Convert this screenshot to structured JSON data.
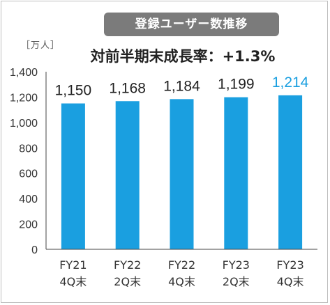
{
  "chart_data": {
    "type": "bar",
    "title": "登録ユーザー数推移",
    "unit": "［万人］",
    "annotation": "対前半期末成長率：+1.3%",
    "categories": [
      [
        "FY21",
        "4Q末"
      ],
      [
        "FY22",
        "2Q末"
      ],
      [
        "FY22",
        "4Q末"
      ],
      [
        "FY23",
        "2Q末"
      ],
      [
        "FY23",
        "4Q末"
      ]
    ],
    "values": [
      1150,
      1168,
      1184,
      1199,
      1214
    ],
    "value_labels": [
      "1,150",
      "1,168",
      "1,184",
      "1,199",
      "1,214"
    ],
    "highlight_index": 4,
    "ylim": [
      0,
      1400
    ],
    "yticks": [
      0,
      200,
      400,
      600,
      800,
      1000,
      1200,
      1400
    ],
    "ytick_labels": [
      "0",
      "200",
      "400",
      "600",
      "800",
      "1,000",
      "1,200",
      "1,400"
    ],
    "grid": false,
    "colors": {
      "bar": "#1a9fe0",
      "highlight_text": "#1a9fe0",
      "text": "#222222",
      "axis": "#444444",
      "title_bg": "#7b7b7b"
    }
  }
}
